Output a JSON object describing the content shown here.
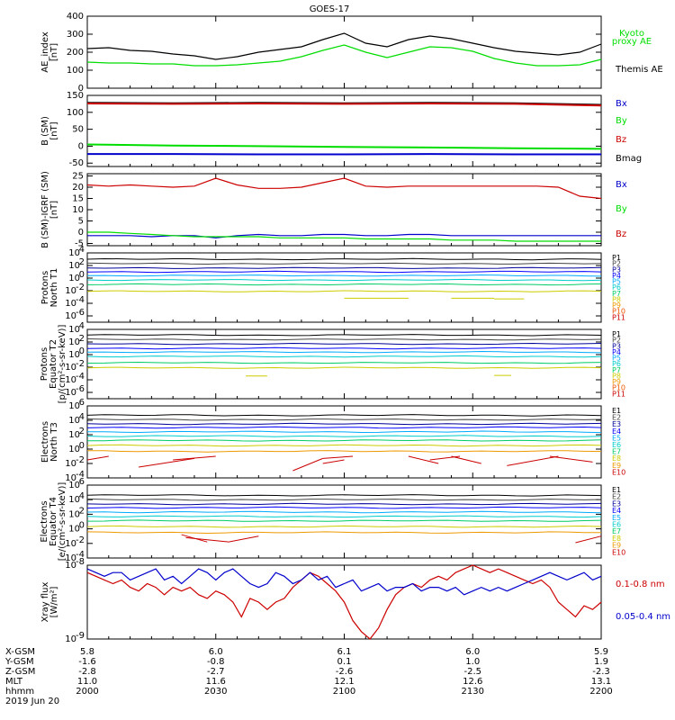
{
  "title": "GOES-17",
  "colors": {
    "black": "#000000",
    "green": "#00dd00",
    "red": "#cc0000",
    "blue": "#0000cc",
    "p": [
      "#000000",
      "#444444",
      "#000099",
      "#0000ff",
      "#00aaff",
      "#00cccc",
      "#00cc66",
      "#cccc00",
      "#ee9900",
      "#ee5500",
      "#cc0000"
    ],
    "e": [
      "#000000",
      "#444444",
      "#000099",
      "#0000ff",
      "#00aaff",
      "#00cccc",
      "#00cc66",
      "#cccc00",
      "#ee9900",
      "#cc0000"
    ]
  },
  "chart_data": [
    {
      "type": "line",
      "ylabel": [
        "AE_index",
        "[nT]"
      ],
      "ylim": [
        0,
        400
      ],
      "yticks": [
        {
          "v": 0,
          "l": "0"
        },
        {
          "v": 100,
          "l": "100"
        },
        {
          "v": 200,
          "l": "200"
        },
        {
          "v": 300,
          "l": "300"
        },
        {
          "v": 400,
          "l": "400"
        }
      ],
      "x": [
        0,
        5,
        10,
        15,
        20,
        25,
        30,
        35,
        40,
        45,
        50,
        55,
        60,
        65,
        70,
        75,
        80,
        85,
        90,
        95,
        100,
        105,
        110,
        115,
        120
      ],
      "series": [
        {
          "name": "Themis AE",
          "color": "black",
          "values": [
            220,
            225,
            210,
            205,
            190,
            180,
            160,
            175,
            200,
            215,
            230,
            270,
            305,
            250,
            230,
            270,
            290,
            275,
            250,
            225,
            205,
            195,
            185,
            200,
            245
          ]
        },
        {
          "name": "Kyoto proxy AE",
          "color": "green",
          "values": [
            145,
            140,
            140,
            135,
            135,
            125,
            125,
            130,
            140,
            150,
            175,
            210,
            240,
            200,
            170,
            200,
            230,
            225,
            205,
            165,
            140,
            125,
            125,
            130,
            160
          ]
        }
      ],
      "legend": [
        {
          "label": "Kyoto",
          "color": "green"
        },
        {
          "label": "proxy AE",
          "color": "green"
        },
        {
          "label": "Themis AE",
          "color": "black"
        }
      ]
    },
    {
      "type": "line",
      "ylabel": [
        "B (SM)",
        "[nT]"
      ],
      "ylim": [
        -60,
        150
      ],
      "yticks": [
        {
          "v": -50,
          "l": "-50"
        },
        {
          "v": 0,
          "l": "0"
        },
        {
          "v": 50,
          "l": "50"
        },
        {
          "v": 100,
          "l": "100"
        },
        {
          "v": 150,
          "l": "150"
        }
      ],
      "x": [
        0,
        20,
        40,
        60,
        80,
        100,
        120
      ],
      "series": [
        {
          "name": "Bmag",
          "color": "black",
          "values": [
            128,
            127,
            128,
            127,
            128,
            127,
            122
          ]
        },
        {
          "name": "Bz",
          "color": "red",
          "values": [
            126,
            125,
            126,
            125,
            126,
            125,
            120
          ]
        },
        {
          "name": "By",
          "color": "green",
          "values": [
            5,
            2,
            0,
            -2,
            -4,
            -6,
            -8
          ]
        },
        {
          "name": "Bx",
          "color": "blue",
          "values": [
            -23,
            -23,
            -24,
            -24,
            -23,
            -24,
            -24
          ]
        }
      ],
      "legend": [
        {
          "label": "Bx",
          "color": "blue"
        },
        {
          "label": "By",
          "color": "green"
        },
        {
          "label": "Bz",
          "color": "red"
        },
        {
          "label": "Bmag",
          "color": "black"
        }
      ]
    },
    {
      "type": "line",
      "ylabel": [
        "B (SM)-IGRF (SM)",
        "[nT]"
      ],
      "ylim": [
        -6,
        26
      ],
      "yticks": [
        {
          "v": -5,
          "l": "-5"
        },
        {
          "v": 0,
          "l": "0"
        },
        {
          "v": 5,
          "l": "5"
        },
        {
          "v": 10,
          "l": "10"
        },
        {
          "v": 15,
          "l": "15"
        },
        {
          "v": 20,
          "l": "20"
        },
        {
          "v": 25,
          "l": "25"
        }
      ],
      "x": [
        0,
        5,
        10,
        15,
        20,
        25,
        30,
        35,
        40,
        45,
        50,
        55,
        60,
        65,
        70,
        75,
        80,
        85,
        90,
        95,
        100,
        105,
        110,
        115,
        120
      ],
      "series": [
        {
          "name": "Bz",
          "color": "red",
          "values": [
            21,
            20.5,
            21,
            20.5,
            20,
            20.5,
            24,
            21,
            19.5,
            19.5,
            20,
            22,
            24,
            20.5,
            20,
            20.5,
            20.5,
            20.5,
            20.5,
            20.5,
            20.5,
            20.5,
            20,
            16,
            15
          ]
        },
        {
          "name": "Bx",
          "color": "blue",
          "values": [
            -1.5,
            -1.5,
            -1.5,
            -2,
            -1.5,
            -1.5,
            -2.5,
            -1.5,
            -1,
            -1.5,
            -1.5,
            -1,
            -1,
            -1.5,
            -1.5,
            -1,
            -1,
            -1.5,
            -1.5,
            -1.5,
            -1.5,
            -1.5,
            -1.5,
            -1.5,
            -1.5
          ]
        },
        {
          "name": "By",
          "color": "green",
          "values": [
            0,
            0,
            -0.5,
            -1,
            -1.5,
            -2,
            -2,
            -2,
            -2,
            -2.5,
            -2.5,
            -2.5,
            -2.5,
            -3,
            -3,
            -3,
            -3,
            -3.5,
            -3.5,
            -3.5,
            -4,
            -4,
            -4,
            -4,
            -4
          ]
        }
      ],
      "legend": [
        {
          "label": "Bx",
          "color": "blue"
        },
        {
          "label": "By",
          "color": "green"
        },
        {
          "label": "Bz",
          "color": "red"
        }
      ]
    },
    {
      "type": "line",
      "log": true,
      "ylabel": [
        "Protons",
        "North T1"
      ],
      "ylim": [
        -7,
        4
      ],
      "yticks": [
        {
          "v": 4,
          "l": "10",
          "e": "4"
        },
        {
          "v": 2,
          "l": "10",
          "e": "2"
        },
        {
          "v": 0,
          "l": "10",
          "e": "0"
        },
        {
          "v": -2,
          "l": "10",
          "e": "-2"
        },
        {
          "v": -4,
          "l": "10",
          "e": "-4"
        },
        {
          "v": -6,
          "l": "10",
          "e": "-6"
        }
      ],
      "levels": [
        3.0,
        2.3,
        1.6,
        1.0,
        0.4,
        -0.3,
        -1.0,
        -2.1
      ],
      "sparse": [
        {
          "x": [
            60,
            75
          ],
          "y": -3.2
        },
        {
          "x": [
            85,
            95
          ],
          "y": -3.2
        },
        {
          "x": [
            95,
            102
          ],
          "y": -3.3
        }
      ],
      "legend": [
        "P1",
        "P2",
        "P3",
        "P4",
        "P5",
        "P6",
        "P7",
        "P8",
        "P9",
        "P10",
        "P11"
      ]
    },
    {
      "type": "line",
      "log": true,
      "ylabel": [
        "Protons",
        "Equator T2",
        "[p/(cm²-s-sr-keV)]"
      ],
      "ylim": [
        -7,
        4
      ],
      "yticks": [
        {
          "v": 4,
          "l": "10",
          "e": "4"
        },
        {
          "v": 2,
          "l": "10",
          "e": "2"
        },
        {
          "v": 0,
          "l": "10",
          "e": "0"
        },
        {
          "v": -2,
          "l": "10",
          "e": "-2"
        },
        {
          "v": -4,
          "l": "10",
          "e": "-4"
        },
        {
          "v": -6,
          "l": "10",
          "e": "-6"
        }
      ],
      "levels": [
        3.1,
        2.4,
        1.7,
        1.0,
        0.4,
        -0.3,
        -1.3,
        -2.1
      ],
      "sparse": [
        {
          "x": [
            37,
            42
          ],
          "y": -3.4
        },
        {
          "x": [
            95,
            99
          ],
          "y": -3.3
        }
      ],
      "legend": [
        "P1",
        "P2",
        "P3",
        "P4",
        "P5",
        "P6",
        "P7",
        "P8",
        "P9",
        "P10",
        "P11"
      ]
    },
    {
      "type": "line",
      "log": true,
      "ylabel": [
        "Electrons",
        "North T3"
      ],
      "ylim": [
        -4,
        6
      ],
      "yticks": [
        {
          "v": 6,
          "l": "10",
          "e": "6"
        },
        {
          "v": 4,
          "l": "10",
          "e": "4"
        },
        {
          "v": 2,
          "l": "10",
          "e": "2"
        },
        {
          "v": 0,
          "l": "10",
          "e": "0"
        },
        {
          "v": -2,
          "l": "10",
          "e": "-2"
        },
        {
          "v": -4,
          "l": "10",
          "e": "-4"
        }
      ],
      "levels": [
        4.7,
        4.1,
        3.5,
        3.0,
        2.4,
        1.8,
        1.2,
        0.5,
        -0.3
      ],
      "sparse": [
        {
          "x": [
            0,
            5
          ],
          "y": [
            -1.5,
            -1.0
          ]
        },
        {
          "x": [
            12,
            25
          ],
          "y": [
            -2.5,
            -1.3
          ]
        },
        {
          "x": [
            20,
            30
          ],
          "y": [
            -1.5,
            -1.0
          ]
        },
        {
          "x": [
            48,
            55
          ],
          "y": [
            -3.0,
            -1.3
          ]
        },
        {
          "x": [
            55,
            62
          ],
          "y": [
            -1.3,
            -1.0
          ]
        },
        {
          "x": [
            55,
            60
          ],
          "y": [
            -2.0,
            -1.5
          ]
        },
        {
          "x": [
            75,
            82
          ],
          "y": [
            -1.0,
            -2.0
          ]
        },
        {
          "x": [
            80,
            87
          ],
          "y": [
            -1.5,
            -1.0
          ]
        },
        {
          "x": [
            85,
            92
          ],
          "y": [
            -1.0,
            -2.0
          ]
        },
        {
          "x": [
            98,
            110
          ],
          "y": [
            -2.3,
            -1.0
          ]
        },
        {
          "x": [
            108,
            118
          ],
          "y": [
            -1.0,
            -1.8
          ]
        }
      ],
      "legend": [
        "E1",
        "E2",
        "E3",
        "E4",
        "E5",
        "E6",
        "E7",
        "E8",
        "E9",
        "E10"
      ]
    },
    {
      "type": "line",
      "log": true,
      "ylabel": [
        "Electrons",
        "Equator T4",
        "[e/(cm²-s-sr-keV)]"
      ],
      "ylim": [
        -4,
        6
      ],
      "yticks": [
        {
          "v": 6,
          "l": "10",
          "e": "6"
        },
        {
          "v": 4,
          "l": "10",
          "e": "4"
        },
        {
          "v": 2,
          "l": "10",
          "e": "2"
        },
        {
          "v": 0,
          "l": "10",
          "e": "0"
        },
        {
          "v": -2,
          "l": "10",
          "e": "-2"
        },
        {
          "v": -4,
          "l": "10",
          "e": "-4"
        }
      ],
      "levels": [
        4.6,
        4.0,
        3.4,
        2.9,
        2.3,
        1.7,
        1.1,
        0.3,
        -0.5
      ],
      "sparse": [
        {
          "x": [
            22,
            28
          ],
          "y": [
            -0.8,
            -1.8
          ]
        },
        {
          "x": [
            23,
            33
          ],
          "y": [
            -1.2,
            -1.8
          ]
        },
        {
          "x": [
            33,
            40
          ],
          "y": [
            -1.8,
            -1.0
          ]
        },
        {
          "x": [
            114,
            120
          ],
          "y": [
            -1.9,
            -1.0
          ]
        }
      ],
      "legend": [
        "E1",
        "E2",
        "E3",
        "E4",
        "E5",
        "E6",
        "E7",
        "E8",
        "E9",
        "E10"
      ]
    },
    {
      "type": "line",
      "log": true,
      "ylabel": [
        "Xray flux",
        "[W/m²]"
      ],
      "ylim": [
        -9,
        -8
      ],
      "yticks": [
        {
          "v": -8,
          "l": "10",
          "e": "-8"
        },
        {
          "v": -9,
          "l": "10",
          "e": "-9"
        }
      ],
      "x": [
        0,
        2,
        4,
        6,
        8,
        10,
        12,
        14,
        16,
        18,
        20,
        22,
        24,
        26,
        28,
        30,
        32,
        34,
        36,
        38,
        40,
        42,
        44,
        46,
        48,
        50,
        52,
        54,
        56,
        58,
        60,
        62,
        64,
        66,
        68,
        70,
        72,
        74,
        76,
        78,
        80,
        82,
        84,
        86,
        88,
        90,
        92,
        94,
        96,
        98,
        100,
        102,
        104,
        106,
        108,
        110,
        112,
        114,
        116,
        118,
        120
      ],
      "series": [
        {
          "name": "0.1-0.8 nm",
          "color": "red",
          "values": [
            -8.1,
            -8.15,
            -8.2,
            -8.25,
            -8.2,
            -8.3,
            -8.35,
            -8.25,
            -8.3,
            -8.4,
            -8.3,
            -8.35,
            -8.3,
            -8.4,
            -8.45,
            -8.35,
            -8.4,
            -8.5,
            -8.7,
            -8.45,
            -8.5,
            -8.6,
            -8.5,
            -8.45,
            -8.3,
            -8.2,
            -8.1,
            -8.15,
            -8.25,
            -8.35,
            -8.5,
            -8.75,
            -8.9,
            -9.0,
            -8.85,
            -8.6,
            -8.4,
            -8.3,
            -8.25,
            -8.3,
            -8.2,
            -8.15,
            -8.2,
            -8.1,
            -8.05,
            -8.0,
            -8.05,
            -8.1,
            -8.05,
            -8.1,
            -8.15,
            -8.2,
            -8.25,
            -8.2,
            -8.3,
            -8.5,
            -8.6,
            -8.7,
            -8.55,
            -8.6,
            -8.5
          ]
        },
        {
          "name": "0.05-0.4 nm",
          "color": "blue",
          "values": [
            -8.05,
            -8.1,
            -8.15,
            -8.1,
            -8.1,
            -8.2,
            -8.15,
            -8.1,
            -8.05,
            -8.2,
            -8.15,
            -8.25,
            -8.15,
            -8.05,
            -8.1,
            -8.2,
            -8.1,
            -8.05,
            -8.15,
            -8.25,
            -8.3,
            -8.25,
            -8.1,
            -8.15,
            -8.25,
            -8.2,
            -8.1,
            -8.2,
            -8.15,
            -8.3,
            -8.25,
            -8.2,
            -8.35,
            -8.3,
            -8.25,
            -8.35,
            -8.3,
            -8.3,
            -8.25,
            -8.35,
            -8.3,
            -8.3,
            -8.35,
            -8.3,
            -8.4,
            -8.35,
            -8.3,
            -8.35,
            -8.3,
            -8.35,
            -8.3,
            -8.25,
            -8.2,
            -8.15,
            -8.1,
            -8.15,
            -8.2,
            -8.15,
            -8.1,
            -8.2,
            -8.15
          ]
        }
      ],
      "legend": [
        {
          "label": "0.1-0.8 nm",
          "color": "red"
        },
        {
          "label": "0.05-0.4 nm",
          "color": "blue"
        }
      ]
    }
  ],
  "ephemeris": {
    "labels": [
      "X-GSM",
      "Y-GSM",
      "Z-GSM",
      "MLT",
      "hhmm",
      "2019 Jun 20"
    ],
    "columns": [
      {
        "values": [
          "5.8",
          "-1.6",
          "-2.8",
          "11.0",
          "2000"
        ]
      },
      {
        "values": [
          "6.0",
          "-0.8",
          "-2.7",
          "11.6",
          "2030"
        ]
      },
      {
        "values": [
          "6.1",
          "0.1",
          "-2.6",
          "12.1",
          "2100"
        ]
      },
      {
        "values": [
          "6.0",
          "1.0",
          "-2.5",
          "12.6",
          "2130"
        ]
      },
      {
        "values": [
          "5.9",
          "1.9",
          "-2.3",
          "13.1",
          "2200"
        ]
      }
    ]
  }
}
